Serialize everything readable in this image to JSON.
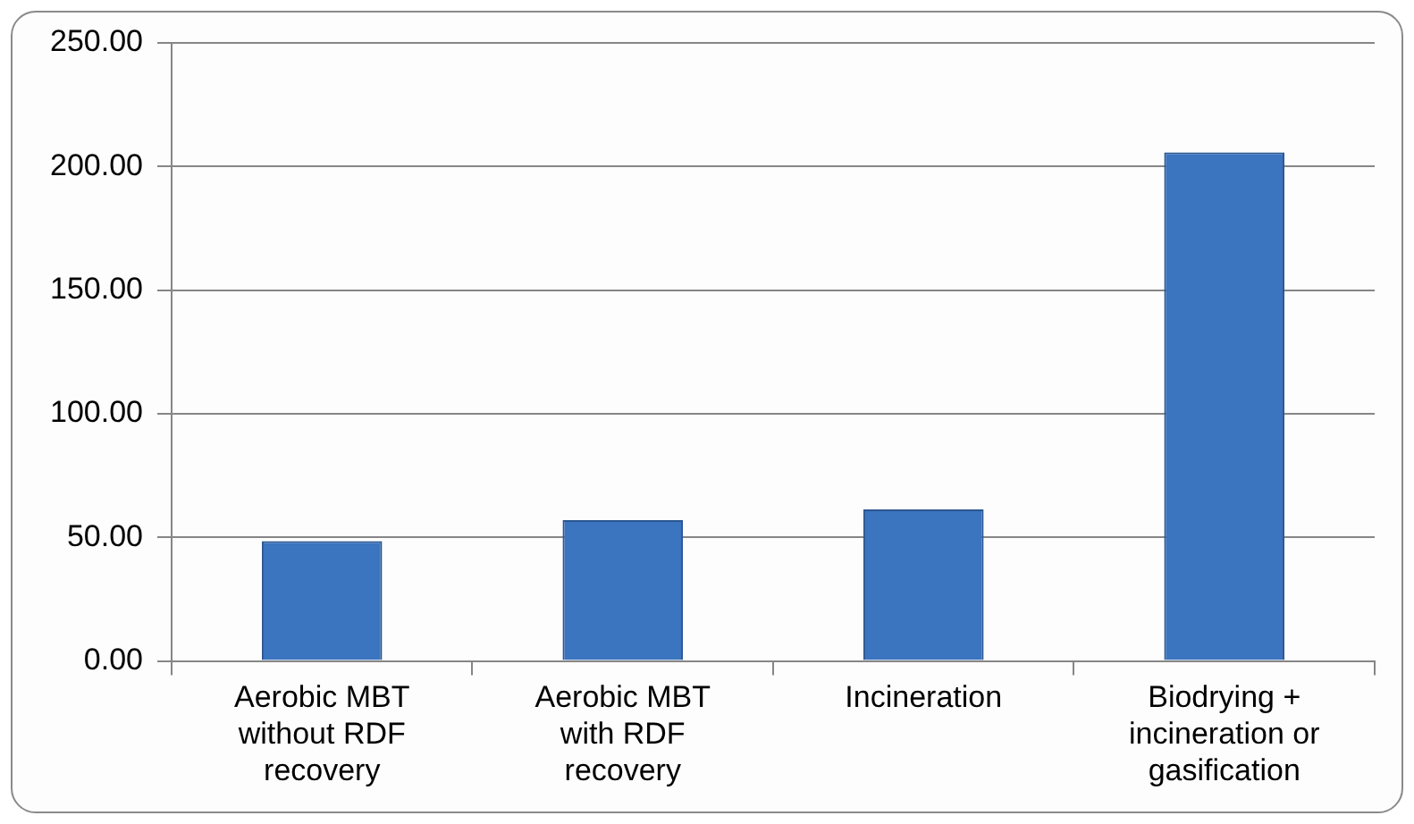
{
  "chart_data": {
    "type": "bar",
    "categories": [
      "Aerobic MBT without RDF recovery",
      "Aerobic MBT with RDF recovery",
      "Incineration",
      "Biodrying + incineration or gasification"
    ],
    "values": [
      48.5,
      57,
      61.3,
      205.7
    ],
    "color": "#3b74bf",
    "ylim": [
      0,
      250
    ],
    "yticks": [
      {
        "value": 0,
        "label": "0.00"
      },
      {
        "value": 50,
        "label": "50.00"
      },
      {
        "value": 100,
        "label": "100.00"
      },
      {
        "value": 150,
        "label": "150.00"
      },
      {
        "value": 200,
        "label": "200.00"
      },
      {
        "value": 250,
        "label": "250.00"
      }
    ],
    "grid": "y",
    "legend": false
  }
}
